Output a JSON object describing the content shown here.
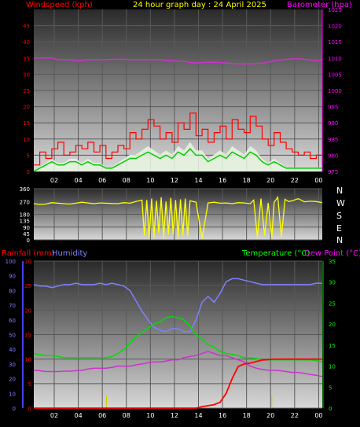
{
  "header": {
    "title": "24 hour graph day : 24 April 2025",
    "left_label": "Windspeed (kph)",
    "right_label": "Barometer (hpa)"
  },
  "colors": {
    "background": "#000000",
    "title": "#ffff00",
    "windspeed": "#ff0000",
    "wind_avg": "#00cc00",
    "wind_gust_fill": "#ffffff",
    "barometer": "#cc33cc",
    "direction": "#ffff00",
    "rain": "#ff0000",
    "humidity": "#8080ff",
    "temperature": "#00dd00",
    "dewpoint": "#cc33cc",
    "tick_axis": "#ff0000",
    "tick_axis_right": "#ff00ff",
    "tick_axis_temp": "#00ff00"
  },
  "direction_labels": [
    "N",
    "W",
    "S",
    "E",
    "N"
  ],
  "x_hours": [
    "02",
    "04",
    "06",
    "08",
    "10",
    "12",
    "14",
    "16",
    "18",
    "20",
    "22",
    "00"
  ],
  "chart_data": [
    {
      "type": "line",
      "id": "wind",
      "x": [
        0,
        0.5,
        1,
        1.5,
        2,
        2.5,
        3,
        3.5,
        4,
        4.5,
        5,
        5.5,
        6,
        6.5,
        7,
        7.5,
        8,
        8.5,
        9,
        9.5,
        10,
        10.5,
        11,
        11.5,
        12,
        12.5,
        13,
        13.5,
        14,
        14.5,
        15,
        15.5,
        16,
        16.5,
        17,
        17.5,
        18,
        18.5,
        19,
        19.5,
        20,
        20.5,
        21,
        21.5,
        22,
        22.5,
        23,
        23.5,
        24
      ],
      "series": [
        {
          "name": "Windspeed (kph)",
          "axis": "left",
          "values": [
            2,
            6,
            4,
            7,
            9,
            5,
            6,
            8,
            7,
            9,
            6,
            8,
            4,
            6,
            8,
            7,
            12,
            10,
            13,
            16,
            14,
            10,
            12,
            9,
            15,
            13,
            18,
            11,
            13,
            9,
            12,
            14,
            10,
            16,
            13,
            12,
            17,
            14,
            10,
            8,
            12,
            9,
            7,
            6,
            5,
            6,
            4,
            5,
            3
          ]
        },
        {
          "name": "Windspeed Avg",
          "axis": "left",
          "values": [
            0,
            1,
            2,
            3,
            2,
            2,
            3,
            3,
            2,
            3,
            2,
            2,
            1,
            1,
            2,
            3,
            4,
            4,
            5,
            6,
            5,
            4,
            5,
            4,
            6,
            5,
            7,
            5,
            5,
            3,
            4,
            5,
            4,
            6,
            5,
            4,
            6,
            5,
            3,
            2,
            3,
            2,
            1,
            1,
            1,
            1,
            1,
            1,
            1
          ]
        },
        {
          "name": "Barometer (hpa)",
          "axis": "right",
          "values": [
            1010,
            1010,
            1010,
            1010,
            1009.5,
            1009.5,
            1009.5,
            1009.3,
            1009.3,
            1009.5,
            1009.5,
            1009.5,
            1009.5,
            1009.6,
            1009.6,
            1009.6,
            1009.5,
            1009.5,
            1009.5,
            1009.5,
            1009.5,
            1009.5,
            1009.3,
            1009.2,
            1009.0,
            1009.0,
            1008.6,
            1008.5,
            1008.6,
            1008.7,
            1008.7,
            1008.6,
            1008.5,
            1008.3,
            1008.2,
            1008.2,
            1008.2,
            1008.3,
            1008.4,
            1008.7,
            1009.2,
            1009.4,
            1009.6,
            1009.7,
            1009.8,
            1009.6,
            1009.4,
            1009.3,
            1009.3
          ]
        }
      ],
      "ylim_left": [
        0,
        50
      ],
      "ylim_right": [
        975,
        1025
      ],
      "yticks_left": [
        0,
        5,
        10,
        15,
        20,
        25,
        30,
        35,
        40,
        45
      ],
      "yticks_right": [
        975,
        980,
        985,
        990,
        995,
        1000,
        1005,
        1010,
        1015,
        1020,
        1025
      ]
    },
    {
      "type": "scatter",
      "id": "direction",
      "ylim": [
        0,
        360
      ],
      "yticks": [
        0,
        45,
        90,
        135,
        180,
        225,
        270,
        315,
        360
      ],
      "x": [
        0,
        0.5,
        1,
        1.5,
        2,
        2.5,
        3,
        3.5,
        4,
        4.5,
        5,
        5.5,
        6,
        6.5,
        7,
        7.5,
        8,
        8.5,
        9,
        9.2,
        9.4,
        9.6,
        9.8,
        10,
        10.2,
        10.4,
        10.6,
        10.8,
        11,
        11.2,
        11.4,
        11.6,
        11.8,
        12,
        12.2,
        12.4,
        12.6,
        12.8,
        13,
        13.5,
        14,
        14.5,
        15,
        15.5,
        16,
        16.5,
        17,
        17.5,
        18,
        18.3,
        18.6,
        18.9,
        19.2,
        19.5,
        19.8,
        20,
        20.3,
        20.6,
        20.9,
        21.2,
        21.5,
        22,
        22.5,
        23,
        23.5,
        24
      ],
      "values": [
        255,
        250,
        252,
        262,
        258,
        255,
        252,
        258,
        265,
        260,
        255,
        260,
        258,
        256,
        255,
        262,
        258,
        270,
        280,
        30,
        280,
        10,
        290,
        20,
        275,
        50,
        300,
        15,
        270,
        40,
        295,
        35,
        280,
        20,
        285,
        30,
        290,
        25,
        275,
        265,
        10,
        260,
        265,
        258,
        260,
        255,
        262,
        260,
        255,
        280,
        20,
        290,
        30,
        260,
        15,
        265,
        300,
        20,
        285,
        270,
        275,
        290,
        268,
        272,
        270,
        262
      ]
    },
    {
      "type": "line",
      "id": "temp",
      "x": [
        0,
        0.5,
        1,
        1.5,
        2,
        2.5,
        3,
        3.5,
        4,
        4.5,
        5,
        5.5,
        6,
        6.5,
        7,
        7.5,
        8,
        8.5,
        9,
        9.5,
        10,
        10.5,
        11,
        11.5,
        12,
        12.5,
        13,
        13.5,
        14,
        14.5,
        15,
        15.5,
        16,
        16.5,
        17,
        17.5,
        18,
        18.5,
        19,
        19.5,
        20,
        20.5,
        21,
        21.5,
        22,
        22.5,
        23,
        23.5,
        24
      ],
      "series": [
        {
          "name": "Rainfall (mm)",
          "axis": "rain",
          "values": [
            0,
            0,
            0,
            0,
            0,
            0,
            0,
            0,
            0,
            0,
            0,
            0,
            0,
            0,
            0,
            0,
            0,
            0,
            0,
            0,
            0,
            0,
            0,
            0,
            0,
            0,
            0,
            0,
            0.3,
            0.5,
            0.7,
            1.2,
            3,
            6,
            8.5,
            9,
            9.2,
            9.5,
            9.8,
            9.9,
            10,
            10,
            10,
            10,
            10,
            10,
            10,
            10,
            10
          ]
        },
        {
          "name": "Humidity",
          "axis": "hum",
          "values": [
            84,
            83,
            83,
            82,
            83,
            84,
            84,
            85,
            84,
            84,
            84,
            85,
            84,
            85,
            84,
            83,
            80,
            73,
            66,
            60,
            55,
            53,
            52,
            54,
            54,
            52,
            52,
            60,
            72,
            76,
            72,
            78,
            86,
            88,
            88,
            87,
            86,
            85,
            84,
            84,
            84,
            84,
            84,
            84,
            84,
            84,
            84,
            85,
            85
          ]
        },
        {
          "name": "Temperature (°C)",
          "axis": "temp",
          "values": [
            13,
            12.7,
            12.5,
            12.5,
            12.3,
            12,
            12,
            12,
            12,
            12,
            12,
            12,
            12,
            12.3,
            13,
            14,
            15.5,
            17,
            18,
            19,
            20,
            20.5,
            21.5,
            21.8,
            21.5,
            21,
            19.5,
            17.5,
            16.5,
            15,
            14.5,
            13.5,
            13,
            12.8,
            12.5,
            12,
            12,
            11.8,
            11.5,
            11.5,
            11.5,
            11.5,
            11.5,
            11.5,
            11.5,
            11.5,
            11.5,
            11.3,
            11
          ]
        },
        {
          "name": "Dew Point (°C)",
          "axis": "temp",
          "values": [
            9,
            8.9,
            8.7,
            8.7,
            8.7,
            8.8,
            8.8,
            8.9,
            9,
            9.3,
            9.5,
            9.5,
            9.5,
            9.7,
            10,
            10,
            10,
            10.3,
            10.5,
            10.8,
            11,
            11,
            11.2,
            11.5,
            11.5,
            12,
            12.3,
            12.5,
            13,
            13.5,
            13,
            12.5,
            12.5,
            12,
            11.5,
            11,
            10,
            9.5,
            9.2,
            9,
            9,
            8.9,
            8.7,
            8.5,
            8.5,
            8.3,
            8.0,
            7.8,
            7.5
          ]
        }
      ],
      "ylim_rain": [
        0,
        30
      ],
      "ylim_hum": [
        0,
        100
      ],
      "ylim_temp": [
        0,
        35
      ],
      "yticks_rain": [
        0,
        5,
        10,
        15,
        20,
        25,
        30
      ],
      "yticks_hum": [
        0,
        10,
        20,
        30,
        40,
        50,
        60,
        70,
        80,
        90,
        100
      ],
      "yticks_temp": [
        0,
        5,
        10,
        15,
        20,
        25,
        30,
        35
      ],
      "left_label_rain": "Rainfall (mm)",
      "left_label_hum": "Humidity",
      "right_label_temp": "Temperature (°C)",
      "right_label_dew": "Dew Point (°C)"
    }
  ]
}
